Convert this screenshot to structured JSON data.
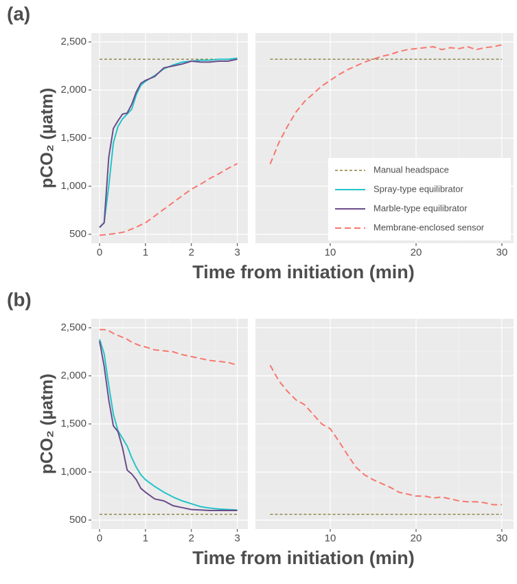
{
  "chart_data": [
    {
      "type": "line",
      "title": "(a)",
      "ylabel": "pCO₂ (µatm)",
      "xlabel": "Time from initiation (min)",
      "x": [
        0,
        0.1,
        0.2,
        0.3,
        0.4,
        0.5,
        0.6,
        0.7,
        0.8,
        0.9,
        1,
        1.2,
        1.4,
        1.6,
        1.8,
        2,
        2.2,
        2.4,
        2.6,
        2.8,
        3
      ],
      "xlim": [
        -0.18,
        3.23
      ],
      "ylim": [
        407,
        2593
      ],
      "xticks": [
        0,
        1,
        2,
        3
      ],
      "yticks": [
        500,
        {
          "value": 1000,
          "label": "1,000"
        },
        {
          "value": 1500,
          "label": "1,500"
        },
        {
          "value": 2000,
          "label": "2,000"
        },
        {
          "value": 2500,
          "label": "2,500"
        }
      ],
      "grid": true,
      "series": [
        {
          "name": "Manual headspace",
          "color": "#8b7d3a",
          "linestyle": "dotted",
          "values": [
            2320,
            2320,
            2320,
            2320,
            2320,
            2320,
            2320,
            2320,
            2320,
            2320,
            2320,
            2320,
            2320,
            2320,
            2320,
            2320,
            2320,
            2320,
            2320,
            2320,
            2320
          ]
        },
        {
          "name": "Spray-type equilibrator",
          "color": "#22c3c9",
          "linestyle": "solid",
          "values": [
            575,
            620,
            1000,
            1450,
            1620,
            1700,
            1750,
            1800,
            1950,
            2050,
            2090,
            2150,
            2220,
            2260,
            2290,
            2300,
            2310,
            2310,
            2320,
            2320,
            2330
          ]
        },
        {
          "name": "Marble-type equilibrator",
          "color": "#6b4c8a",
          "linestyle": "solid",
          "values": [
            570,
            620,
            1300,
            1600,
            1680,
            1750,
            1760,
            1850,
            1980,
            2070,
            2100,
            2140,
            2230,
            2250,
            2270,
            2300,
            2290,
            2290,
            2300,
            2300,
            2320
          ]
        },
        {
          "name": "Membrane-enclosed sensor",
          "color": "#f8766d",
          "linestyle": "dashed",
          "values": [
            490,
            495,
            500,
            505,
            512,
            520,
            535,
            555,
            575,
            598,
            620,
            690,
            760,
            830,
            900,
            970,
            1020,
            1080,
            1130,
            1185,
            1235
          ]
        }
      ]
    },
    {
      "type": "line",
      "legend": "lower right",
      "x": [
        3,
        4,
        5,
        6,
        7,
        8,
        9,
        10,
        11,
        12,
        13,
        14,
        15,
        16,
        17,
        18,
        19,
        20,
        21,
        22,
        23,
        24,
        25,
        26,
        27,
        28,
        29,
        30
      ],
      "xlim": [
        1.28,
        31.36
      ],
      "ylim": [
        407,
        2593
      ],
      "xticks": [
        10,
        20,
        30
      ],
      "yticks": [
        500,
        1000,
        1500,
        2000,
        2500
      ],
      "grid": true,
      "series": [
        {
          "color": "#8b7d3a",
          "linestyle": "dotted",
          "values": [
            2320,
            2320,
            2320,
            2320,
            2320,
            2320,
            2320,
            2320,
            2320,
            2320,
            2320,
            2320,
            2320,
            2320,
            2320,
            2320,
            2320,
            2320,
            2320,
            2320,
            2320,
            2320,
            2320,
            2320,
            2320,
            2320,
            2320,
            2320
          ]
        },
        {
          "color": "#f8766d",
          "linestyle": "dashed",
          "values": [
            1230,
            1450,
            1620,
            1770,
            1880,
            1960,
            2040,
            2100,
            2160,
            2210,
            2250,
            2290,
            2320,
            2350,
            2370,
            2400,
            2420,
            2430,
            2440,
            2450,
            2420,
            2440,
            2430,
            2450,
            2420,
            2440,
            2450,
            2470
          ]
        }
      ]
    },
    {
      "type": "line",
      "title": "(b)",
      "ylabel": "pCO₂ (µatm)",
      "xlabel": "Time from initiation (min)",
      "x": [
        0,
        0.1,
        0.2,
        0.3,
        0.4,
        0.5,
        0.6,
        0.7,
        0.8,
        0.9,
        1,
        1.2,
        1.4,
        1.6,
        1.8,
        2,
        2.2,
        2.4,
        2.6,
        2.8,
        3
      ],
      "xlim": [
        -0.18,
        3.23
      ],
      "ylim": [
        407,
        2593
      ],
      "xticks": [
        0,
        1,
        2,
        3
      ],
      "yticks": [
        500,
        {
          "value": 1000,
          "label": "1,000"
        },
        {
          "value": 1500,
          "label": "1,500"
        },
        {
          "value": 2000,
          "label": "2,000"
        },
        {
          "value": 2500,
          "label": "2,500"
        }
      ],
      "grid": true,
      "series": [
        {
          "color": "#8b7d3a",
          "linestyle": "dotted",
          "values": [
            560,
            560,
            560,
            560,
            560,
            560,
            560,
            560,
            560,
            560,
            560,
            560,
            560,
            560,
            560,
            560,
            560,
            560,
            560,
            560,
            560
          ]
        },
        {
          "color": "#22c3c9",
          "linestyle": "solid",
          "values": [
            2380,
            2230,
            1900,
            1600,
            1430,
            1350,
            1270,
            1150,
            1050,
            970,
            920,
            850,
            790,
            740,
            700,
            670,
            640,
            625,
            615,
            610,
            605
          ]
        },
        {
          "color": "#6b4c8a",
          "linestyle": "solid",
          "values": [
            2360,
            2100,
            1750,
            1480,
            1420,
            1250,
            1020,
            980,
            920,
            830,
            790,
            720,
            700,
            650,
            630,
            610,
            605,
            600,
            600,
            600,
            600
          ]
        },
        {
          "color": "#f8766d",
          "linestyle": "dashed",
          "values": [
            2480,
            2480,
            2470,
            2440,
            2420,
            2400,
            2380,
            2350,
            2330,
            2310,
            2300,
            2270,
            2260,
            2250,
            2220,
            2200,
            2180,
            2160,
            2150,
            2140,
            2110
          ]
        }
      ]
    },
    {
      "type": "line",
      "x": [
        3,
        4,
        5,
        6,
        7,
        8,
        9,
        10,
        11,
        12,
        13,
        14,
        15,
        16,
        17,
        18,
        19,
        20,
        21,
        22,
        23,
        24,
        25,
        26,
        27,
        28,
        29,
        30
      ],
      "xlim": [
        1.28,
        31.36
      ],
      "ylim": [
        407,
        2593
      ],
      "xticks": [
        10,
        20,
        30
      ],
      "yticks": [
        500,
        1000,
        1500,
        2000,
        2500
      ],
      "grid": true,
      "series": [
        {
          "color": "#8b7d3a",
          "linestyle": "dotted",
          "values": [
            560,
            560,
            560,
            560,
            560,
            560,
            560,
            560,
            560,
            560,
            560,
            560,
            560,
            560,
            560,
            560,
            560,
            560,
            560,
            560,
            560,
            560,
            560,
            560,
            560,
            560,
            560,
            560
          ]
        },
        {
          "color": "#f8766d",
          "linestyle": "dashed",
          "values": [
            2110,
            1950,
            1840,
            1750,
            1700,
            1600,
            1500,
            1450,
            1320,
            1180,
            1050,
            970,
            920,
            880,
            840,
            790,
            770,
            750,
            750,
            730,
            740,
            720,
            700,
            690,
            690,
            680,
            660,
            660
          ]
        }
      ]
    }
  ]
}
